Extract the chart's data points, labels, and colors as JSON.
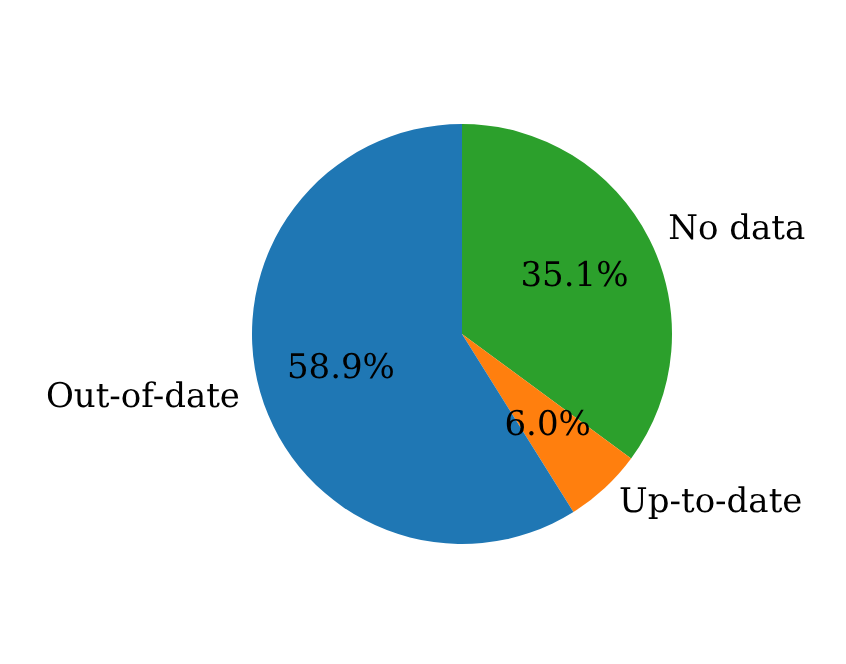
{
  "chart_data": {
    "type": "pie",
    "categories": [
      "No data",
      "Up-to-date",
      "Out-of-date"
    ],
    "values": [
      35.1,
      6.0,
      58.9
    ],
    "colors": [
      "#2ca02c",
      "#ff7f0e",
      "#1f77b4"
    ],
    "value_labels": [
      "35.1%",
      "6.0%",
      "58.9%"
    ],
    "legend": false
  }
}
